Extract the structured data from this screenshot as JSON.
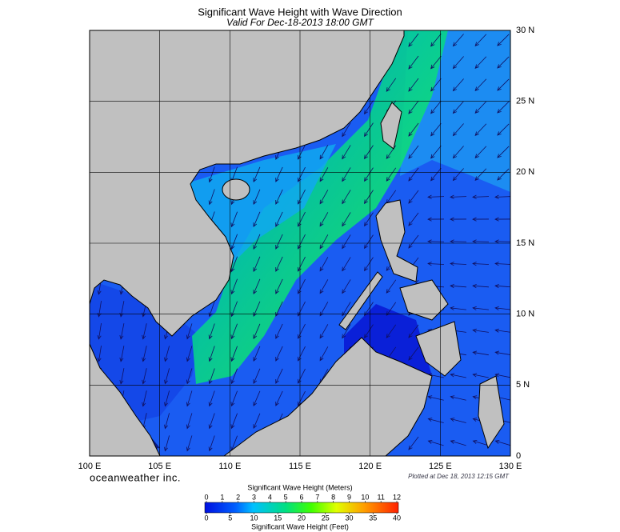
{
  "map": {
    "title": "Significant Wave Height with Wave Direction",
    "subtitle": "Valid For Dec-18-2013 18:00 GMT",
    "lonlim": [
      100,
      130
    ],
    "latlim": [
      0,
      30
    ],
    "lon_ticks": [
      {
        "value": 100,
        "label": "100 E"
      },
      {
        "value": 105,
        "label": "105 E"
      },
      {
        "value": 110,
        "label": "110 E"
      },
      {
        "value": 115,
        "label": "115 E"
      },
      {
        "value": 120,
        "label": "120 E"
      },
      {
        "value": 125,
        "label": "125 E"
      },
      {
        "value": 130,
        "label": "130 E"
      }
    ],
    "lat_ticks": [
      0,
      {
        "value": 5,
        "label": "5 N"
      },
      {
        "value": 10,
        "label": "10 N"
      },
      {
        "value": 15,
        "label": "15 N"
      },
      {
        "value": 20,
        "label": "20 N"
      },
      {
        "value": 25,
        "label": "25 N"
      },
      {
        "value": 30,
        "label": "30 N"
      }
    ],
    "credit": "oceanweather inc.",
    "plotted": "Plotted at Dec 18, 2013 12:15 GMT",
    "colorbar": {
      "meters_title": "Significant Wave Height (Meters)",
      "meters_ticks": [
        0,
        1,
        2,
        3,
        4,
        5,
        6,
        7,
        8,
        9,
        10,
        11,
        12
      ],
      "feet_title": "Significant Wave Height (Feet)",
      "feet_ticks": [
        0,
        5,
        10,
        15,
        20,
        25,
        30,
        35,
        40
      ]
    }
  }
}
